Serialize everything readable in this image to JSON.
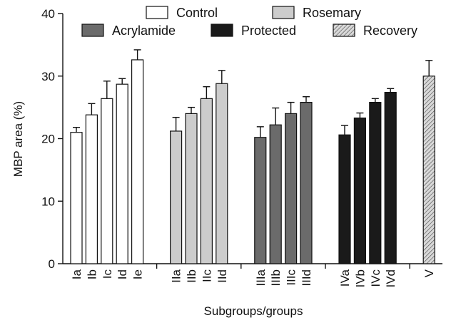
{
  "chart_data": {
    "type": "bar",
    "xlabel": "Subgroups/groups",
    "ylabel": "MBP area (%)",
    "ylim": [
      0,
      40
    ],
    "yticks": [
      0,
      10,
      20,
      30,
      40
    ],
    "grid": false,
    "legend_position": "top",
    "groups": [
      {
        "name": "Control",
        "pattern": "solid",
        "color": "#ffffff",
        "bars": [
          {
            "label": "Ia",
            "value": 21.0,
            "error": 0.8
          },
          {
            "label": "Ib",
            "value": 23.8,
            "error": 1.8
          },
          {
            "label": "Ic",
            "value": 26.4,
            "error": 2.8
          },
          {
            "label": "Id",
            "value": 28.7,
            "error": 0.9
          },
          {
            "label": "Ie",
            "value": 32.6,
            "error": 1.6
          }
        ]
      },
      {
        "name": "Rosemary",
        "pattern": "solid",
        "color": "#cccccc",
        "bars": [
          {
            "label": "IIa",
            "value": 21.2,
            "error": 2.2
          },
          {
            "label": "IIb",
            "value": 24.0,
            "error": 1.0
          },
          {
            "label": "IIc",
            "value": 26.4,
            "error": 1.9
          },
          {
            "label": "IId",
            "value": 28.8,
            "error": 2.1
          }
        ]
      },
      {
        "name": "Acrylamide",
        "pattern": "solid",
        "color": "#6b6b6b",
        "bars": [
          {
            "label": "IIIa",
            "value": 20.2,
            "error": 1.7
          },
          {
            "label": "IIIb",
            "value": 22.2,
            "error": 2.7
          },
          {
            "label": "IIIc",
            "value": 24.0,
            "error": 1.8
          },
          {
            "label": "IIId",
            "value": 25.8,
            "error": 0.9
          }
        ]
      },
      {
        "name": "Protected",
        "pattern": "solid",
        "color": "#1a1a1a",
        "bars": [
          {
            "label": "IVa",
            "value": 20.6,
            "error": 1.5
          },
          {
            "label": "IVb",
            "value": 23.3,
            "error": 0.8
          },
          {
            "label": "IVc",
            "value": 25.8,
            "error": 0.6
          },
          {
            "label": "IVd",
            "value": 27.4,
            "error": 0.6
          }
        ]
      },
      {
        "name": "Recovery",
        "pattern": "hatched",
        "color": "#cccccc",
        "bars": [
          {
            "label": "V",
            "value": 30.0,
            "error": 2.5
          }
        ]
      }
    ],
    "legend": [
      {
        "name": "Control",
        "row": 1
      },
      {
        "name": "Rosemary",
        "row": 1
      },
      {
        "name": "Acrylamide",
        "row": 2
      },
      {
        "name": "Protected",
        "row": 2
      },
      {
        "name": "Recovery",
        "row": 2
      }
    ]
  }
}
